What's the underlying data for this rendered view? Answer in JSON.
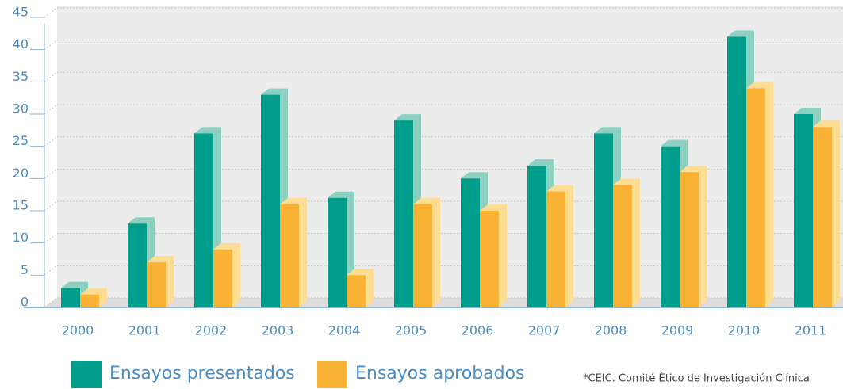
{
  "chart_data": {
    "type": "bar",
    "categories": [
      "2000",
      "2001",
      "2002",
      "2003",
      "2004",
      "2005",
      "2006",
      "2007",
      "2008",
      "2009",
      "2010",
      "2011"
    ],
    "series": [
      {
        "name": "Ensayos presentados",
        "color": "#009e8a",
        "side_color": "#8ed0c0",
        "values": [
          3,
          13,
          27,
          33,
          17,
          29,
          20,
          22,
          27,
          25,
          42,
          30
        ]
      },
      {
        "name": "Ensayos aprobados",
        "color": "#f9b233",
        "side_color": "#fddc93",
        "values": [
          2,
          7,
          9,
          16,
          5,
          16,
          15,
          18,
          19,
          21,
          34,
          28
        ]
      }
    ],
    "ylim": [
      0,
      45
    ],
    "yticks": [
      0,
      5,
      10,
      15,
      20,
      25,
      30,
      35,
      40,
      45
    ],
    "grid": true,
    "footnote": "*CEIC. Comité Ético de Investigación Clínica"
  }
}
